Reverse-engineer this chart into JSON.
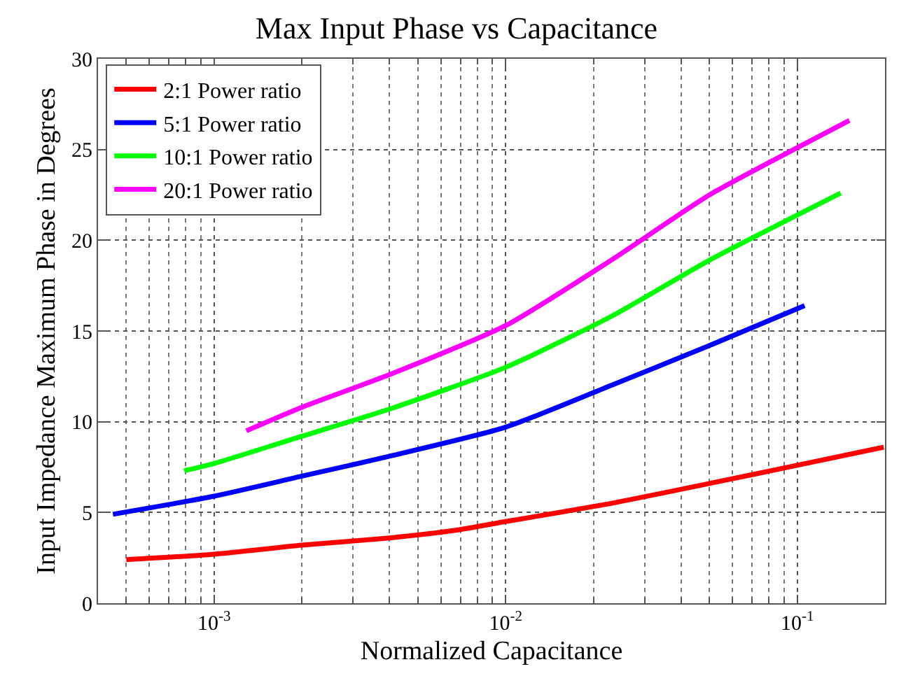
{
  "chart_data": {
    "type": "line",
    "title": "Max Input Phase vs Capacitance",
    "xlabel": "Normalized Capacitance",
    "ylabel": "Input Impedance Maximum Phase in Degrees",
    "log": "x",
    "xlim": [
      0.0004,
      0.2
    ],
    "xticks": [
      {
        "value": 0.001,
        "label": "10$^{-3}$"
      },
      {
        "value": 0.01,
        "label": "10$^{-2}$"
      },
      {
        "value": 0.1,
        "label": "10$^{-1}$"
      }
    ],
    "ylim": [
      0,
      30
    ],
    "yticks": [
      0,
      5,
      10,
      15,
      20,
      25,
      30
    ],
    "grid": true,
    "legend": "top left",
    "line_style": "solid",
    "marker": "none",
    "series": [
      {
        "name": "2:1 Power ratio",
        "color": "#ff0000",
        "x": [
          0.0005,
          0.001,
          0.002,
          0.004,
          0.0066,
          0.01,
          0.023,
          0.05,
          0.1,
          0.198
        ],
        "values": [
          2.4,
          2.7,
          3.2,
          3.6,
          4.0,
          4.5,
          5.5,
          6.6,
          7.6,
          8.6
        ]
      },
      {
        "name": "5:1 Power ratio",
        "color": "#0000ff",
        "x": [
          0.00045,
          0.001,
          0.002,
          0.004,
          0.01,
          0.023,
          0.05,
          0.106
        ],
        "values": [
          4.9,
          5.9,
          7.0,
          8.1,
          9.7,
          12.0,
          14.2,
          16.4
        ]
      },
      {
        "name": "10:1 Power ratio",
        "color": "#00ff00",
        "x": [
          0.00079,
          0.001,
          0.002,
          0.004,
          0.01,
          0.023,
          0.05,
          0.141
        ],
        "values": [
          7.3,
          7.7,
          9.2,
          10.7,
          13.0,
          15.8,
          18.9,
          22.6
        ]
      },
      {
        "name": "20:1 Power ratio",
        "color": "#ff00ff",
        "x": [
          0.00129,
          0.002,
          0.004,
          0.01,
          0.023,
          0.05,
          0.1,
          0.151
        ],
        "values": [
          9.5,
          10.8,
          12.6,
          15.3,
          18.9,
          22.5,
          25.1,
          26.6
        ]
      }
    ]
  }
}
